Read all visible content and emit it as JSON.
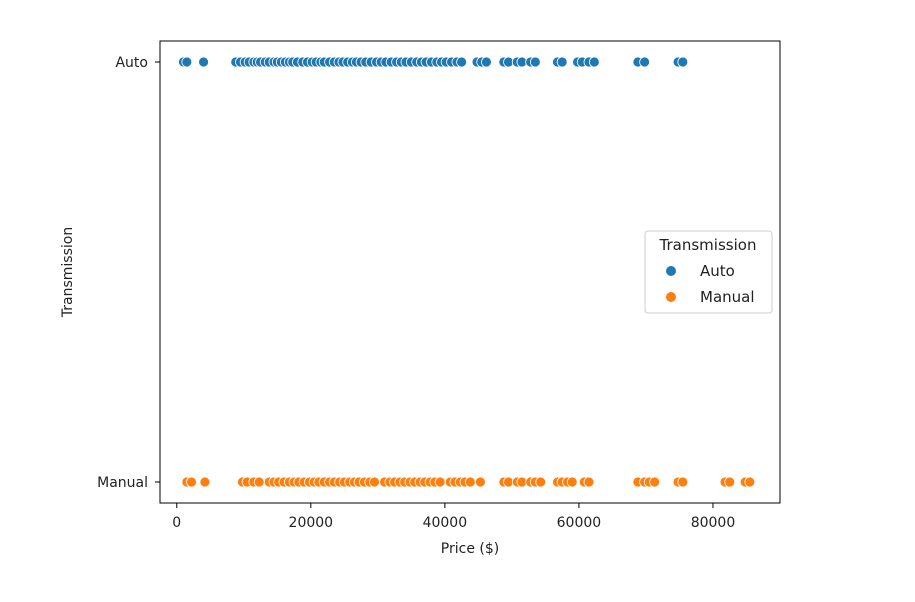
{
  "chart_data": {
    "type": "scatter",
    "title": "",
    "xlabel": "Price ($)",
    "ylabel": "Transmission",
    "xlim": [
      -2500,
      90000
    ],
    "xticks": [
      0,
      20000,
      40000,
      60000,
      80000
    ],
    "xtick_labels": [
      "0",
      "20000",
      "40000",
      "60000",
      "80000"
    ],
    "categories": [
      "Auto",
      "Manual"
    ],
    "grid": false,
    "legend": {
      "title": "Transmission",
      "position": "center-right"
    },
    "series": [
      {
        "name": "Auto",
        "color": "#1f77b4",
        "category": "Auto",
        "x": [
          1000,
          1500,
          4000,
          8800,
          9500,
          10200,
          10800,
          11500,
          12000,
          12500,
          13200,
          13800,
          14500,
          15000,
          15600,
          16200,
          16800,
          17300,
          18000,
          18800,
          19500,
          20200,
          20800,
          21500,
          22000,
          22800,
          23500,
          24200,
          24800,
          25500,
          26200,
          26800,
          27500,
          28200,
          29000,
          29800,
          30500,
          31200,
          32000,
          32800,
          33500,
          34200,
          35000,
          35800,
          36500,
          37200,
          38000,
          38800,
          39500,
          40200,
          41000,
          41800,
          42500,
          44800,
          45500,
          46200,
          48800,
          49500,
          50800,
          51500,
          52800,
          53500,
          56800,
          57500,
          59800,
          60500,
          61500,
          62300,
          68800,
          69800,
          74800,
          75500
        ],
        "y": [
          "Auto",
          "Auto",
          "Auto",
          "Auto",
          "Auto",
          "Auto",
          "Auto",
          "Auto",
          "Auto",
          "Auto",
          "Auto",
          "Auto",
          "Auto",
          "Auto",
          "Auto",
          "Auto",
          "Auto",
          "Auto",
          "Auto",
          "Auto",
          "Auto",
          "Auto",
          "Auto",
          "Auto",
          "Auto",
          "Auto",
          "Auto",
          "Auto",
          "Auto",
          "Auto",
          "Auto",
          "Auto",
          "Auto",
          "Auto",
          "Auto",
          "Auto",
          "Auto",
          "Auto",
          "Auto",
          "Auto",
          "Auto",
          "Auto",
          "Auto",
          "Auto",
          "Auto",
          "Auto",
          "Auto",
          "Auto",
          "Auto",
          "Auto",
          "Auto",
          "Auto",
          "Auto",
          "Auto",
          "Auto",
          "Auto",
          "Auto",
          "Auto",
          "Auto",
          "Auto",
          "Auto",
          "Auto",
          "Auto",
          "Auto",
          "Auto",
          "Auto",
          "Auto",
          "Auto",
          "Auto",
          "Auto",
          "Auto",
          "Auto"
        ]
      },
      {
        "name": "Manual",
        "color": "#ff7f0e",
        "category": "Manual",
        "x": [
          1500,
          2200,
          4200,
          9800,
          10500,
          11500,
          12300,
          13800,
          14500,
          15200,
          16000,
          16800,
          17500,
          18200,
          19000,
          19800,
          20500,
          21200,
          22000,
          22800,
          23500,
          24300,
          25000,
          25800,
          26500,
          27200,
          28000,
          28800,
          29500,
          31000,
          31800,
          32500,
          33300,
          34000,
          34800,
          35500,
          36300,
          37000,
          37800,
          38500,
          39300,
          40800,
          41500,
          42300,
          43000,
          43800,
          45300,
          48800,
          49500,
          50800,
          51500,
          52800,
          53500,
          54300,
          56800,
          57500,
          58300,
          59000,
          60800,
          61500,
          68800,
          69800,
          70500,
          71300,
          74800,
          75500,
          81800,
          82500,
          84800,
          85500
        ],
        "y": [
          "Manual",
          "Manual",
          "Manual",
          "Manual",
          "Manual",
          "Manual",
          "Manual",
          "Manual",
          "Manual",
          "Manual",
          "Manual",
          "Manual",
          "Manual",
          "Manual",
          "Manual",
          "Manual",
          "Manual",
          "Manual",
          "Manual",
          "Manual",
          "Manual",
          "Manual",
          "Manual",
          "Manual",
          "Manual",
          "Manual",
          "Manual",
          "Manual",
          "Manual",
          "Manual",
          "Manual",
          "Manual",
          "Manual",
          "Manual",
          "Manual",
          "Manual",
          "Manual",
          "Manual",
          "Manual",
          "Manual",
          "Manual",
          "Manual",
          "Manual",
          "Manual",
          "Manual",
          "Manual",
          "Manual",
          "Manual",
          "Manual",
          "Manual",
          "Manual",
          "Manual",
          "Manual",
          "Manual",
          "Manual",
          "Manual",
          "Manual",
          "Manual",
          "Manual",
          "Manual",
          "Manual",
          "Manual",
          "Manual",
          "Manual",
          "Manual",
          "Manual",
          "Manual",
          "Manual",
          "Manual",
          "Manual"
        ]
      }
    ]
  }
}
